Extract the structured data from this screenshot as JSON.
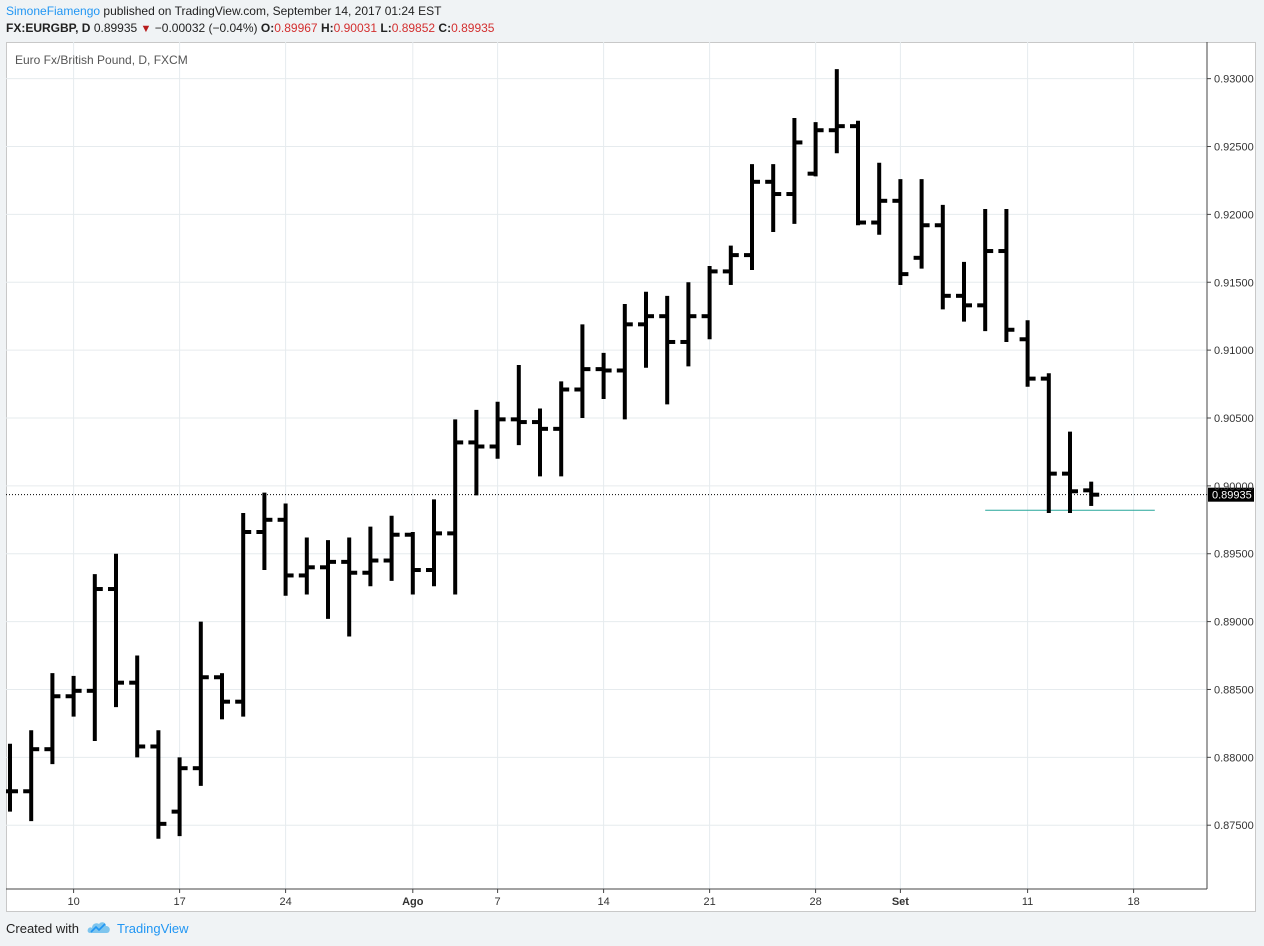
{
  "header": {
    "author": "SimoneFiamengo",
    "published_text": "published on TradingView.com, September 14, 2017 01:24 EST",
    "symbol": "FX:EURGBP, D",
    "last": "0.89935",
    "change": "−0.00032 (−0.04%)",
    "o_label": "O:",
    "o_value": "0.89967",
    "h_label": "H:",
    "h_value": "0.90031",
    "l_label": "L:",
    "l_value": "0.89852",
    "c_label": "C:",
    "c_value": "0.89935"
  },
  "footer": {
    "created_with": "Created with",
    "brand": "TradingView"
  },
  "chart_data": {
    "type": "ohlc",
    "title": "Euro Fx/British Pound, D, FXCM",
    "ylim": [
      0.8703,
      0.9327
    ],
    "y_ticks": [
      0.875,
      0.88,
      0.885,
      0.89,
      0.895,
      0.9,
      0.905,
      0.91,
      0.915,
      0.92,
      0.925,
      0.93
    ],
    "y_tick_labels": [
      "0.87500",
      "0.88000",
      "0.88500",
      "0.89000",
      "0.89500",
      "0.90000",
      "0.90500",
      "0.91000",
      "0.91500",
      "0.92000",
      "0.92500",
      "0.93000"
    ],
    "x_ticks": [
      {
        "label": "10",
        "index": 3
      },
      {
        "label": "17",
        "index": 8
      },
      {
        "label": "24",
        "index": 13
      },
      {
        "label": "Ago",
        "index": 19,
        "bold": true
      },
      {
        "label": "7",
        "index": 23
      },
      {
        "label": "14",
        "index": 28
      },
      {
        "label": "21",
        "index": 33
      },
      {
        "label": "28",
        "index": 38
      },
      {
        "label": "Set",
        "index": 42,
        "bold": true
      },
      {
        "label": "11",
        "index": 48
      },
      {
        "label": "18",
        "index": 53
      }
    ],
    "last_price": 0.89935,
    "last_price_label": "0.89935",
    "support_level": 0.8982,
    "colors": {
      "bars": "#000000",
      "support": "#26a69a",
      "grid": "#e6ebee"
    },
    "bars": [
      {
        "x": 0,
        "o": 0.8775,
        "h": 0.881,
        "l": 0.876,
        "c": 0.8775
      },
      {
        "x": 1,
        "o": 0.8775,
        "h": 0.882,
        "l": 0.8753,
        "c": 0.8806
      },
      {
        "x": 2,
        "o": 0.8806,
        "h": 0.8862,
        "l": 0.8795,
        "c": 0.8845
      },
      {
        "x": 3,
        "o": 0.8845,
        "h": 0.886,
        "l": 0.883,
        "c": 0.8849
      },
      {
        "x": 4,
        "o": 0.8849,
        "h": 0.8935,
        "l": 0.8812,
        "c": 0.8924
      },
      {
        "x": 5,
        "o": 0.8924,
        "h": 0.895,
        "l": 0.8837,
        "c": 0.8855
      },
      {
        "x": 6,
        "o": 0.8855,
        "h": 0.8875,
        "l": 0.88,
        "c": 0.8808
      },
      {
        "x": 7,
        "o": 0.8808,
        "h": 0.882,
        "l": 0.874,
        "c": 0.8751
      },
      {
        "x": 8,
        "o": 0.876,
        "h": 0.88,
        "l": 0.8742,
        "c": 0.8792
      },
      {
        "x": 9,
        "o": 0.8792,
        "h": 0.89,
        "l": 0.8779,
        "c": 0.8859
      },
      {
        "x": 10,
        "o": 0.8859,
        "h": 0.8862,
        "l": 0.8828,
        "c": 0.8841
      },
      {
        "x": 11,
        "o": 0.8841,
        "h": 0.898,
        "l": 0.883,
        "c": 0.8966
      },
      {
        "x": 12,
        "o": 0.8966,
        "h": 0.8995,
        "l": 0.8938,
        "c": 0.8975
      },
      {
        "x": 13,
        "o": 0.8975,
        "h": 0.8987,
        "l": 0.8919,
        "c": 0.8934
      },
      {
        "x": 14,
        "o": 0.8934,
        "h": 0.8962,
        "l": 0.892,
        "c": 0.894
      },
      {
        "x": 15,
        "o": 0.894,
        "h": 0.896,
        "l": 0.8902,
        "c": 0.8944
      },
      {
        "x": 16,
        "o": 0.8944,
        "h": 0.8962,
        "l": 0.8889,
        "c": 0.8936
      },
      {
        "x": 17,
        "o": 0.8936,
        "h": 0.897,
        "l": 0.8926,
        "c": 0.8945
      },
      {
        "x": 18,
        "o": 0.8945,
        "h": 0.8978,
        "l": 0.893,
        "c": 0.8964
      },
      {
        "x": 19,
        "o": 0.8964,
        "h": 0.8966,
        "l": 0.892,
        "c": 0.8938
      },
      {
        "x": 20,
        "o": 0.8938,
        "h": 0.899,
        "l": 0.8926,
        "c": 0.8965
      },
      {
        "x": 21,
        "o": 0.8965,
        "h": 0.9049,
        "l": 0.892,
        "c": 0.9032
      },
      {
        "x": 22,
        "o": 0.9032,
        "h": 0.9056,
        "l": 0.8993,
        "c": 0.9029
      },
      {
        "x": 23,
        "o": 0.9029,
        "h": 0.9062,
        "l": 0.902,
        "c": 0.9049
      },
      {
        "x": 24,
        "o": 0.9049,
        "h": 0.9089,
        "l": 0.903,
        "c": 0.9047
      },
      {
        "x": 25,
        "o": 0.9047,
        "h": 0.9057,
        "l": 0.9007,
        "c": 0.9042
      },
      {
        "x": 26,
        "o": 0.9042,
        "h": 0.9077,
        "l": 0.9007,
        "c": 0.9071
      },
      {
        "x": 27,
        "o": 0.9071,
        "h": 0.9119,
        "l": 0.905,
        "c": 0.9086
      },
      {
        "x": 28,
        "o": 0.9086,
        "h": 0.9098,
        "l": 0.9064,
        "c": 0.9085
      },
      {
        "x": 29,
        "o": 0.9085,
        "h": 0.9134,
        "l": 0.9049,
        "c": 0.9119
      },
      {
        "x": 30,
        "o": 0.9119,
        "h": 0.9143,
        "l": 0.9087,
        "c": 0.9125
      },
      {
        "x": 31,
        "o": 0.9125,
        "h": 0.914,
        "l": 0.906,
        "c": 0.9106
      },
      {
        "x": 32,
        "o": 0.9106,
        "h": 0.915,
        "l": 0.9088,
        "c": 0.9125
      },
      {
        "x": 33,
        "o": 0.9125,
        "h": 0.9162,
        "l": 0.9108,
        "c": 0.9158
      },
      {
        "x": 34,
        "o": 0.9158,
        "h": 0.9177,
        "l": 0.9148,
        "c": 0.917
      },
      {
        "x": 35,
        "o": 0.917,
        "h": 0.9237,
        "l": 0.9159,
        "c": 0.9224
      },
      {
        "x": 36,
        "o": 0.9224,
        "h": 0.9237,
        "l": 0.9187,
        "c": 0.9215
      },
      {
        "x": 37,
        "o": 0.9215,
        "h": 0.9271,
        "l": 0.9193,
        "c": 0.9253
      },
      {
        "x": 38,
        "o": 0.923,
        "h": 0.9268,
        "l": 0.9228,
        "c": 0.9262
      },
      {
        "x": 39,
        "o": 0.9262,
        "h": 0.9307,
        "l": 0.9245,
        "c": 0.9265
      },
      {
        "x": 40,
        "o": 0.9265,
        "h": 0.9269,
        "l": 0.9192,
        "c": 0.9194
      },
      {
        "x": 41,
        "o": 0.9194,
        "h": 0.9238,
        "l": 0.9185,
        "c": 0.921
      },
      {
        "x": 42,
        "o": 0.921,
        "h": 0.9226,
        "l": 0.9148,
        "c": 0.9156
      },
      {
        "x": 43,
        "o": 0.9168,
        "h": 0.9226,
        "l": 0.916,
        "c": 0.9192
      },
      {
        "x": 44,
        "o": 0.9192,
        "h": 0.9207,
        "l": 0.913,
        "c": 0.914
      },
      {
        "x": 45,
        "o": 0.914,
        "h": 0.9165,
        "l": 0.9121,
        "c": 0.9133
      },
      {
        "x": 46,
        "o": 0.9133,
        "h": 0.9204,
        "l": 0.9114,
        "c": 0.9173
      },
      {
        "x": 47,
        "o": 0.9173,
        "h": 0.9204,
        "l": 0.9106,
        "c": 0.9115
      },
      {
        "x": 48,
        "o": 0.9108,
        "h": 0.9122,
        "l": 0.9073,
        "c": 0.9079
      },
      {
        "x": 49,
        "o": 0.9079,
        "h": 0.9083,
        "l": 0.898,
        "c": 0.9009
      },
      {
        "x": 50,
        "o": 0.9009,
        "h": 0.904,
        "l": 0.898,
        "c": 0.8996
      },
      {
        "x": 51,
        "o": 0.89967,
        "h": 0.90031,
        "l": 0.89852,
        "c": 0.89935
      }
    ]
  }
}
